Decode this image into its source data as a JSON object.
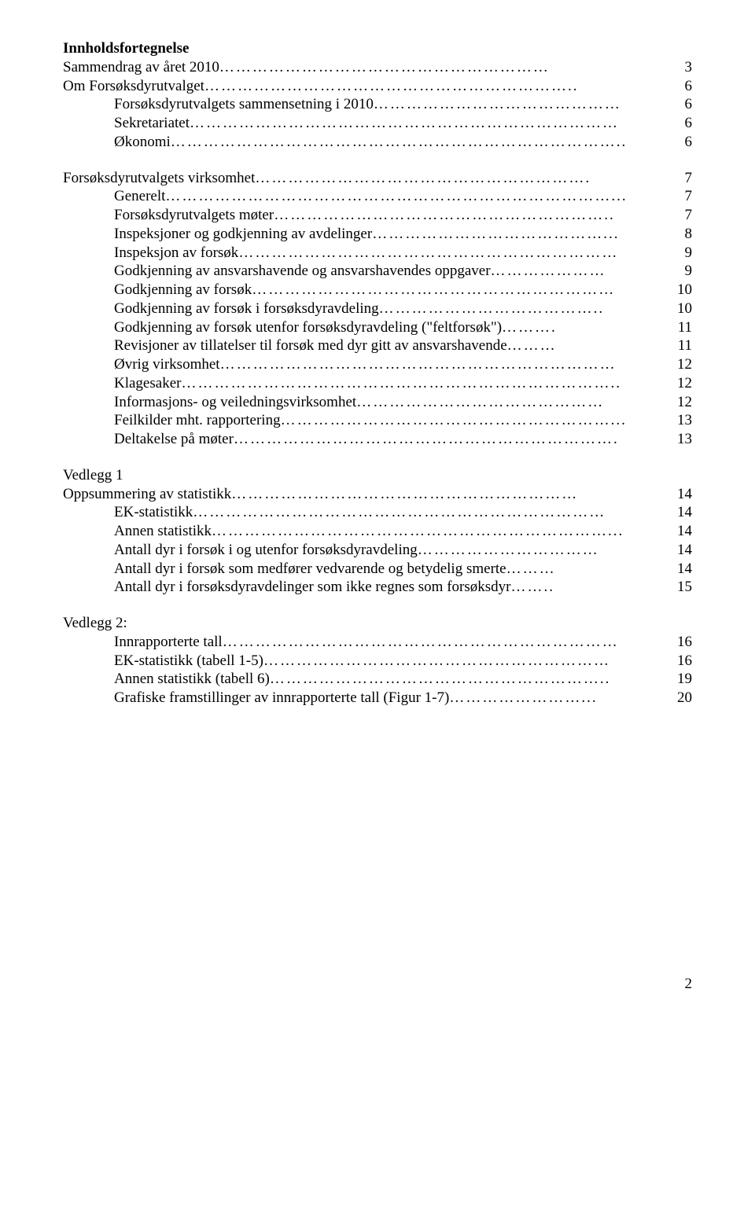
{
  "title": "Innholdsfortegnelse",
  "toc": [
    {
      "label": "Sammendrag av året 2010",
      "dots": "……………………………………………………",
      "page": "3",
      "indent": 0
    },
    {
      "label": "Om Forsøksdyrutvalget",
      "dots": "…………………………………………………………..",
      "page": "6",
      "indent": 0
    },
    {
      "label": "Forsøksdyrutvalgets sammensetning i 2010",
      "dots": "………………………………………",
      "page": "6",
      "indent": 1
    },
    {
      "label": "Sekretariatet",
      "dots": "……………………………………………………………………",
      "page": "6",
      "indent": 1
    },
    {
      "label": "Økonomi",
      "dots": "………………………………………………………………………..",
      "page": "6",
      "indent": 1
    }
  ],
  "toc2": [
    {
      "label": "Forsøksdyrutvalgets virksomhet",
      "dots": "…………………………………………………….",
      "page": "7",
      "indent": 0
    },
    {
      "label": "Generelt",
      "dots": "………………………………………………………………………...",
      "page": "7",
      "indent": 1
    },
    {
      "label": "Forsøksdyrutvalgets møter",
      "dots": "……………………………………………………..",
      "page": "7",
      "indent": 1
    },
    {
      "label": "Inspeksjoner og godkjenning av avdelinger",
      "dots": "……………………………………...",
      "page": "8",
      "indent": 1
    },
    {
      "label": "Inspeksjon av forsøk",
      "dots": "……………………………………………………………",
      "page": "9",
      "indent": 1
    },
    {
      "label": "Godkjenning av ansvarshavende og ansvarshavendes oppgaver",
      "dots": "…………………",
      "page": "9",
      "indent": 1
    },
    {
      "label": "Godkjenning av forsøk",
      "dots": "…………………………………………………………",
      "page": "10",
      "indent": 1
    },
    {
      "label": "Godkjenning av forsøk i forsøksdyravdeling",
      "dots": "…………………………………..",
      "page": "10",
      "indent": 1
    },
    {
      "label": "Godkjenning av forsøk utenfor forsøksdyravdeling (\"feltforsøk\")",
      "dots": "……….",
      "page": "11",
      "indent": 1
    },
    {
      "label": "Revisjoner av tillatelser til forsøk med dyr gitt av ansvarshavende",
      "dots": "………",
      "page": "11",
      "indent": 1
    },
    {
      "label": "Øvrig virksomhet",
      "dots": "………………………………………………………………",
      "page": "12",
      "indent": 1
    },
    {
      "label": "Klagesaker",
      "dots": "……………………………………………………………………..",
      "page": "12",
      "indent": 1
    },
    {
      "label": "Informasjons- og veiledningsvirksomhet",
      "dots": "………………………………………",
      "page": "12",
      "indent": 1
    },
    {
      "label": "Feilkilder mht. rapportering",
      "dots": "……………………………………………………...",
      "page": "13",
      "indent": 1
    },
    {
      "label": "Deltakelse på møter",
      "dots": "…………………………………………………………….",
      "page": "13",
      "indent": 1
    }
  ],
  "toc3": [
    {
      "label": "Vedlegg 1",
      "dots": "",
      "page": "",
      "indent": 0
    },
    {
      "label": "Oppsummering av statistikk",
      "dots": "………………………………………………………",
      "page": "14",
      "indent": 0
    },
    {
      "label": "EK-statistikk",
      "dots": "…………………………………………………………………",
      "page": "14",
      "indent": 1
    },
    {
      "label": "Annen statistikk",
      "dots": "………………………………………………………………...",
      "page": "14",
      "indent": 1
    },
    {
      "label": "Antall dyr i forsøk i og utenfor forsøksdyravdeling",
      "dots": "……………………………",
      "page": "14",
      "indent": 1
    },
    {
      "label": "Antall dyr i forsøk som medfører vedvarende og betydelig smerte",
      "dots": "………",
      "page": "14",
      "indent": 1
    },
    {
      "label": "Antall dyr i forsøksdyravdelinger som ikke regnes som forsøksdyr",
      "dots": "……..",
      "page": "15",
      "indent": 1
    }
  ],
  "toc4": [
    {
      "label": "Vedlegg 2:",
      "dots": "",
      "page": "",
      "indent": 0
    },
    {
      "label": "Innrapporterte tall",
      "dots": "………………………………………………………………",
      "page": "16",
      "indent": 1
    },
    {
      "label": "EK-statistikk (tabell 1-5)",
      "dots": "………………………………………………………",
      "page": "16",
      "indent": 1
    },
    {
      "label": "Annen statistikk (tabell 6)",
      "dots": "……………………………………………………..",
      "page": "19",
      "indent": 1
    },
    {
      "label": "Grafiske framstillinger av innrapporterte tall (Figur 1-7)",
      "dots": "……………………...",
      "page": "20",
      "indent": 1
    }
  ],
  "pageNumber": "2"
}
